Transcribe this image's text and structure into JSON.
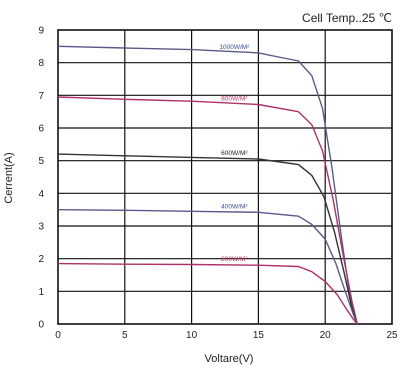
{
  "chart_data": {
    "type": "line",
    "title": "",
    "annotation": "Cell Temp..25 ℃",
    "xlabel": "Voltare(V)",
    "ylabel": "Cerrent(A)",
    "xlim": [
      0,
      25
    ],
    "ylim": [
      0,
      9
    ],
    "xticks": [
      "0",
      "5",
      "10",
      "15",
      "20",
      "25"
    ],
    "yticks": [
      "0",
      "1",
      "2",
      "3",
      "4",
      "5",
      "6",
      "7",
      "8",
      "9"
    ],
    "grid": true,
    "series": [
      {
        "name": "1000W/M²",
        "color": "#5a5a8a",
        "label_color": "#3a4aa0",
        "x": [
          0,
          5,
          10,
          15,
          18,
          19,
          19.8,
          20.5,
          21.2,
          21.8,
          22.3
        ],
        "y": [
          8.5,
          8.45,
          8.4,
          8.3,
          8.05,
          7.6,
          6.6,
          4.8,
          2.7,
          1.0,
          0
        ]
      },
      {
        "name": "800W/M²",
        "color": "#b0306a",
        "label_color": "#c0305a",
        "x": [
          0,
          5,
          10,
          15,
          18,
          19,
          19.8,
          20.6,
          21.3,
          22.0,
          22.4
        ],
        "y": [
          6.95,
          6.88,
          6.82,
          6.72,
          6.5,
          6.1,
          5.3,
          3.8,
          2.2,
          0.7,
          0
        ]
      },
      {
        "name": "600W/M²",
        "color": "#333333",
        "label_color": "#222222",
        "x": [
          0,
          5,
          10,
          15,
          18,
          19,
          19.9,
          20.7,
          21.4,
          22.0,
          22.4
        ],
        "y": [
          5.2,
          5.15,
          5.1,
          5.05,
          4.88,
          4.55,
          3.9,
          2.8,
          1.6,
          0.5,
          0
        ]
      },
      {
        "name": "400W/M²",
        "color": "#5a5a8a",
        "label_color": "#3a4aa0",
        "x": [
          0,
          5,
          10,
          15,
          18,
          19,
          20,
          20.8,
          21.5,
          22.1,
          22.4
        ],
        "y": [
          3.5,
          3.48,
          3.45,
          3.42,
          3.3,
          3.05,
          2.6,
          1.85,
          1.0,
          0.3,
          0
        ]
      },
      {
        "name": "200W/M²",
        "color": "#b0306a",
        "label_color": "#c0305a",
        "x": [
          0,
          5,
          10,
          15,
          18,
          19,
          20,
          20.9,
          21.6,
          22.1,
          22.4
        ],
        "y": [
          1.85,
          1.83,
          1.82,
          1.8,
          1.76,
          1.6,
          1.3,
          0.9,
          0.45,
          0.15,
          0
        ]
      }
    ]
  }
}
